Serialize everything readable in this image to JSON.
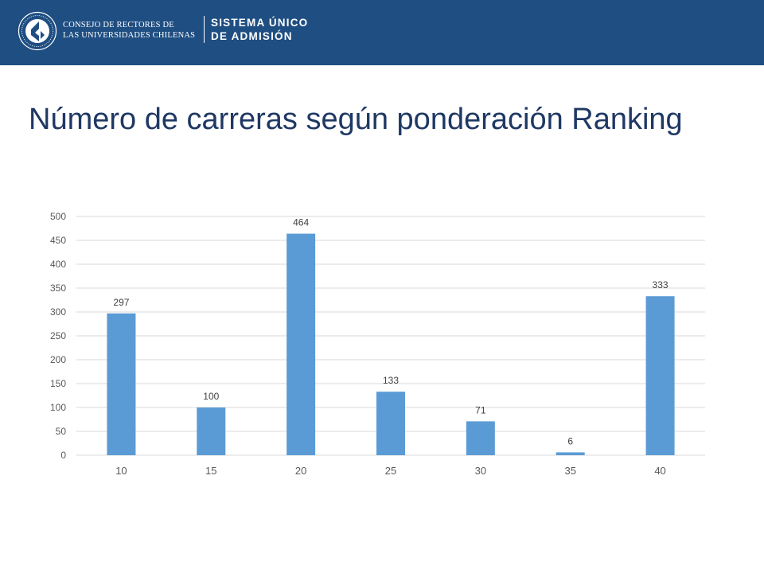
{
  "header": {
    "org_line1": "CONSEJO DE RECTORES DE",
    "org_line2": "LAS UNIVERSIDADES CHILENAS",
    "system_line1": "SISTEMA ÚNICO",
    "system_line2": "DE ADMISIÓN",
    "logo_icon": "cruch-logo-emblem",
    "background_color": "#1f4e82"
  },
  "page": {
    "title": "Número de carreras según ponderación Ranking"
  },
  "chart_data": {
    "type": "bar",
    "categories": [
      "10",
      "15",
      "20",
      "25",
      "30",
      "35",
      "40"
    ],
    "values": [
      297,
      100,
      464,
      133,
      71,
      6,
      333
    ],
    "data_labels": [
      "297",
      "100",
      "464",
      "133",
      "71",
      "6",
      "333"
    ],
    "ylim": [
      0,
      500
    ],
    "yticks": [
      "0",
      "50",
      "100",
      "150",
      "200",
      "250",
      "300",
      "350",
      "400",
      "450",
      "500"
    ],
    "grid": true,
    "legend": "none",
    "bar_color": "#5b9bd5",
    "title": "",
    "xlabel": "",
    "ylabel": ""
  }
}
